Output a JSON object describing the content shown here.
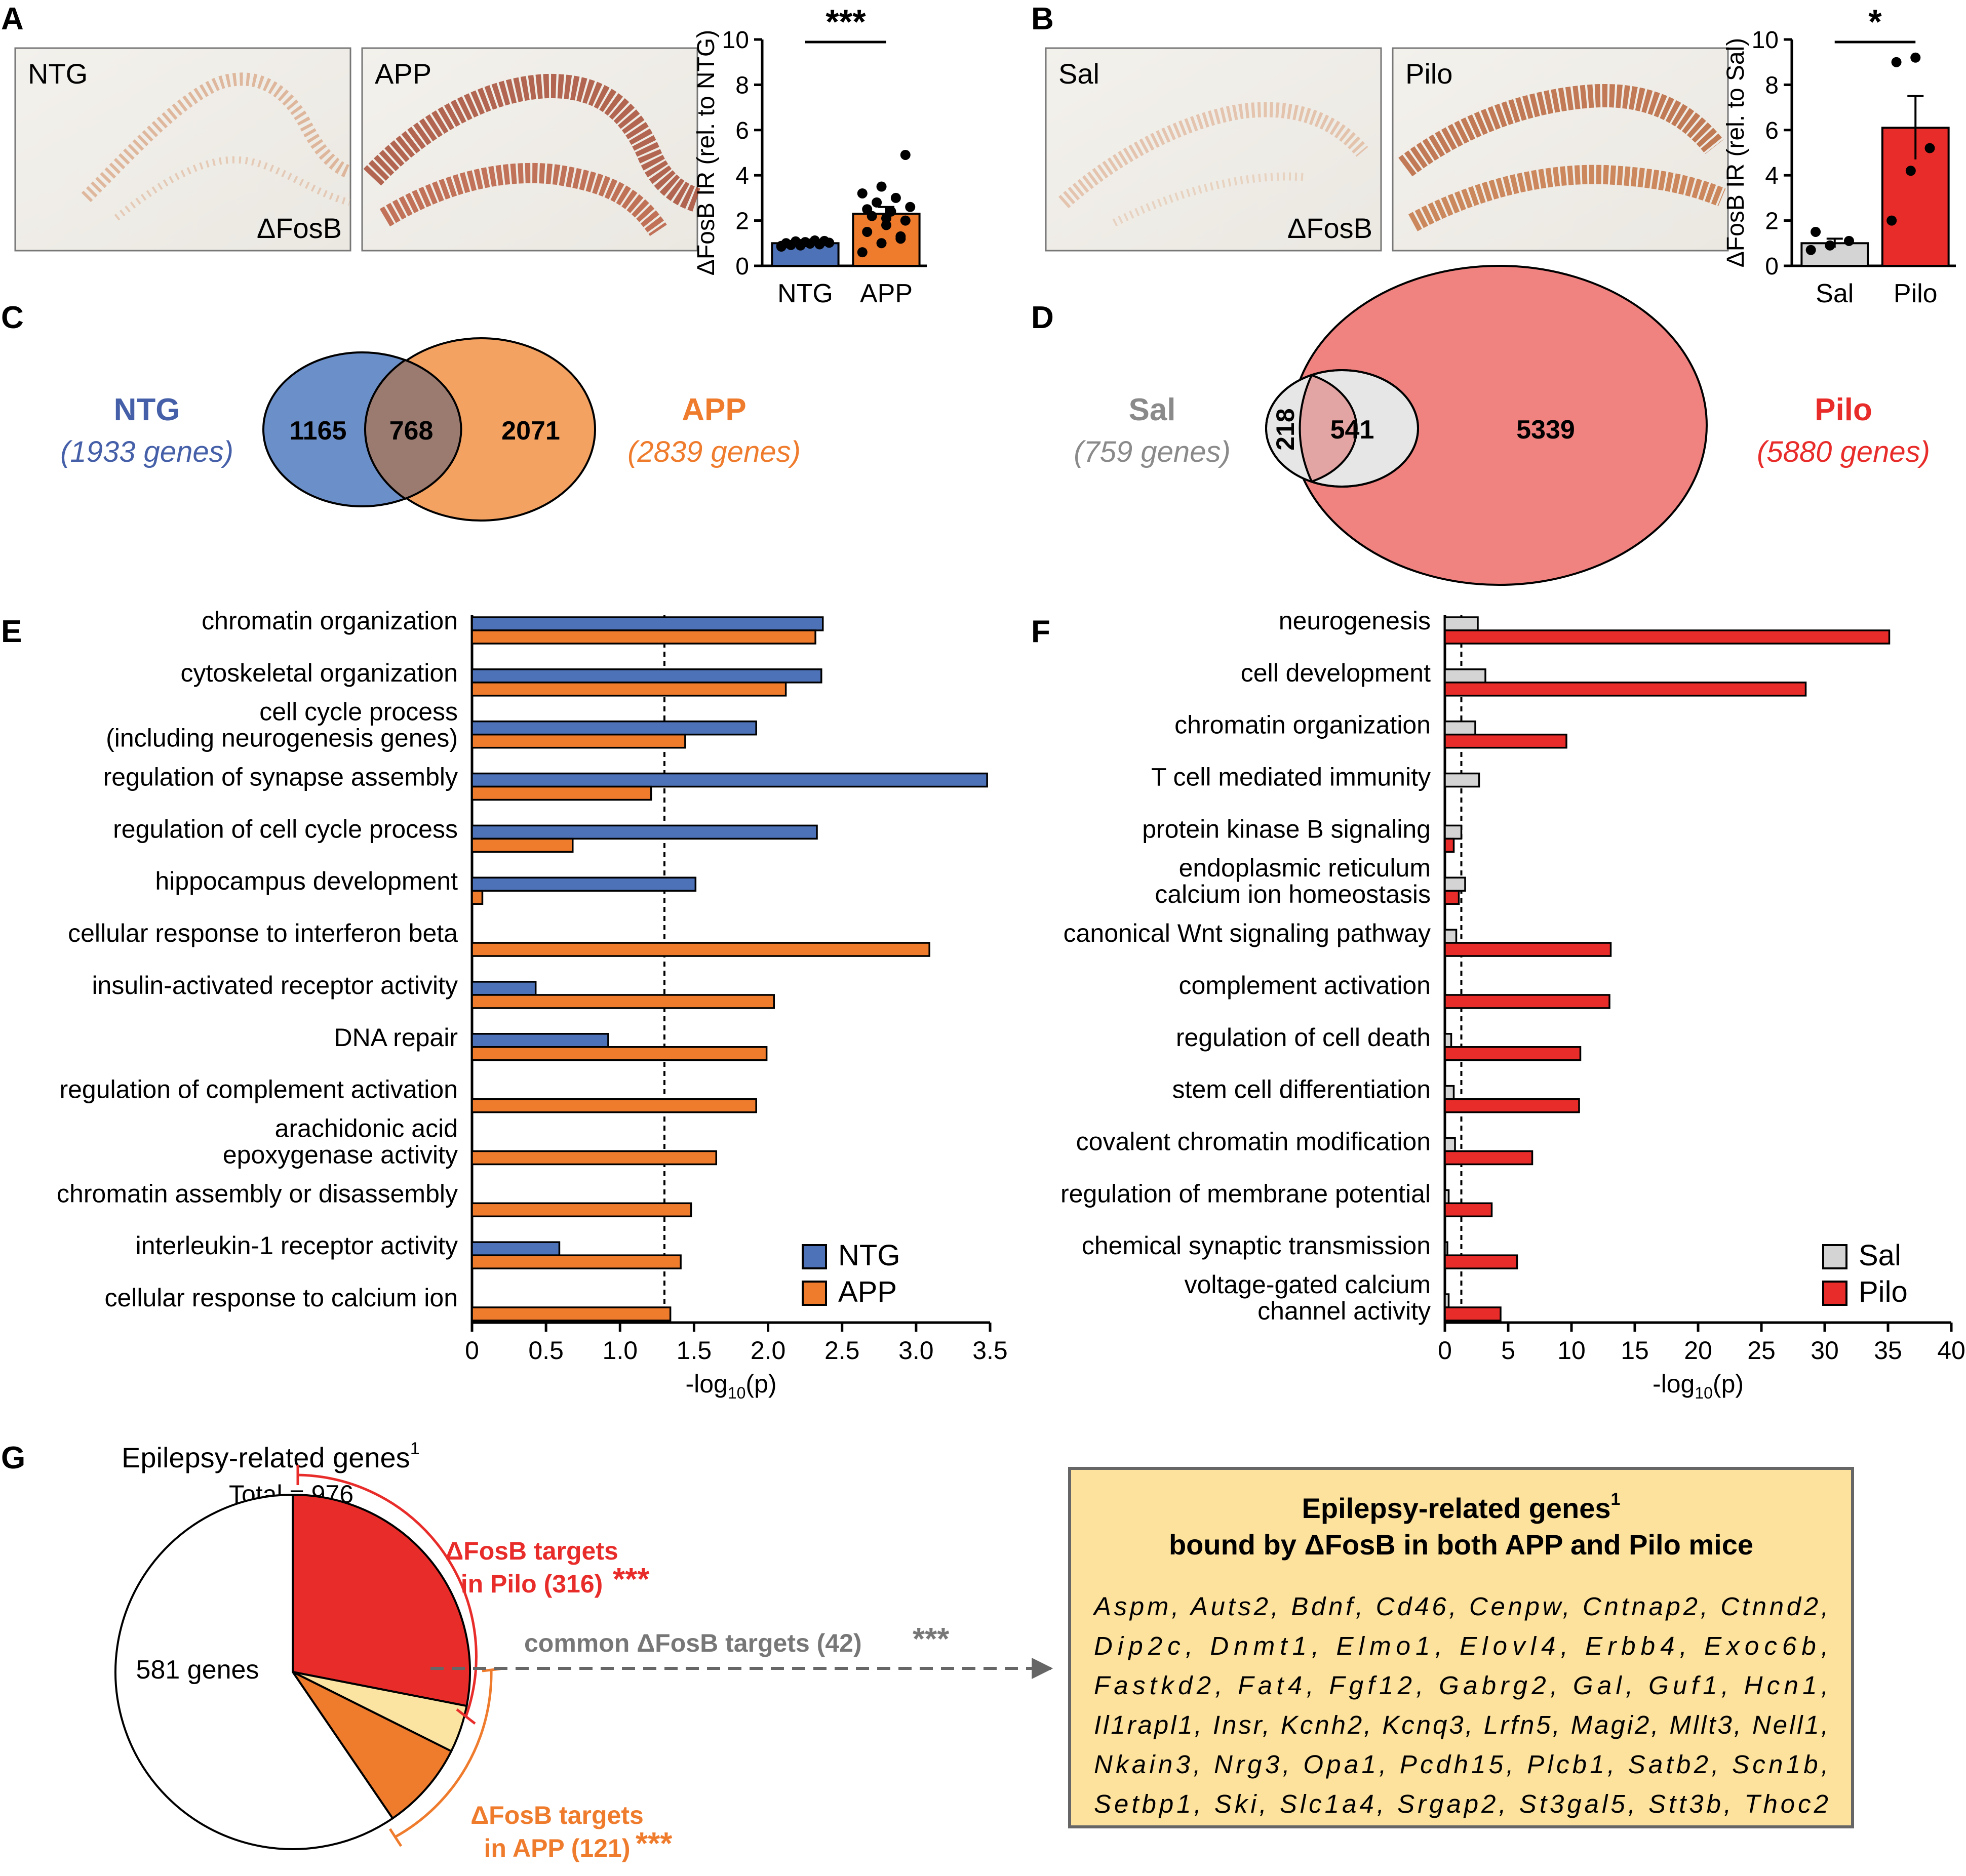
{
  "figure": {
    "panel_labels": [
      "A",
      "B",
      "C",
      "D",
      "E",
      "F",
      "G"
    ],
    "panel_a": {
      "micrographs": [
        {
          "label": "NTG",
          "stain": "ΔFosB"
        },
        {
          "label": "APP"
        }
      ]
    },
    "panel_b": {
      "micrographs": [
        {
          "label": "Sal",
          "stain": "ΔFosB"
        },
        {
          "label": "Pilo"
        }
      ]
    },
    "panel_c": {
      "left": {
        "name": "NTG",
        "genes": "(1933 genes)",
        "unique": "1165"
      },
      "overlap": "768",
      "right": {
        "name": "APP",
        "genes": "(2839 genes)",
        "unique": "2071"
      }
    },
    "panel_d": {
      "left": {
        "name": "Sal",
        "genes": "(759 genes)",
        "unique": "218"
      },
      "overlap": "541",
      "right": {
        "name": "Pilo",
        "genes": "(5880 genes)",
        "unique": "5339"
      }
    },
    "panel_g": {
      "title": "Epilepsy-related genes",
      "title_sup": "1",
      "total": "Total = 976",
      "white_slice_label": "581 genes",
      "pilo_label_1": "ΔFosB targets",
      "pilo_label_2": "in Pilo (316)",
      "pilo_stars": "***",
      "common_label": "common ΔFosB targets (42)",
      "common_stars": "***",
      "app_label_1": "ΔFosB targets",
      "app_label_2": "in APP (121)",
      "app_stars": "***",
      "box_title_1": "Epilepsy-related genes",
      "box_title_sup": "1",
      "box_title_2": "bound by ΔFosB in both APP and Pilo mice",
      "gene_lines": [
        "Aspm,  Auts2,  Bdnf,  Cd46,  Cenpw,  Cntnap2,  Ctnnd2,",
        "Dip2c,    Dnmt1,    Elmo1,    Elovl4,    Erbb4,    Exoc6b,",
        "Fastkd2,   Fat4,   Fgf12,   Gabrg2,   Gal,   Guf1,   Hcn1,",
        "Il1rapl1,  Insr,  Kcnh2,  Kcnq3,  Lrfn5,  Magi2,  Mllt3,  Nell1,",
        "Nkain3,  Nrg3,  Opa1,  Pcdh15,  Plcb1,  Satb2,  Scn1b,",
        "Setbp1,  Ski,  Slc1a4,  Srgap2,  St3gal5,  Stt3b,  Thoc2"
      ]
    }
  },
  "colors": {
    "ntg": "#4d72b8",
    "app": "#ef7b2d",
    "pilo": "#e82c2a",
    "sal": "#d4d4d4",
    "venn_ntg": "#6b8fc8",
    "venn_app": "#f3a262",
    "venn_overlap": "#9b7a70",
    "venn_pilo": "#f08380",
    "venn_sal": "#e6e6e6",
    "venn_sal_overlap": "#e3a5a3",
    "pie_common": "#fbe3a1",
    "gene_box": "#fde29e"
  },
  "chart_data": [
    {
      "id": "A_bar",
      "type": "bar",
      "title": "",
      "ylabel": "ΔFosB IR (rel. to NTG)",
      "categories": [
        "NTG",
        "APP"
      ],
      "values": [
        1.0,
        2.3
      ],
      "errors": [
        0.06,
        0.3
      ],
      "ylim": [
        0,
        10
      ],
      "yticks": [
        0,
        2,
        4,
        6,
        8,
        10
      ],
      "significance": "***",
      "points": [
        [
          0.85,
          0.9,
          0.95,
          1.0,
          1.05,
          1.1,
          0.92,
          0.98,
          1.02,
          1.08,
          1.12,
          0.88,
          0.96
        ],
        [
          0.6,
          1.0,
          1.3,
          1.5,
          1.8,
          2.0,
          2.2,
          2.4,
          2.6,
          2.8,
          3.0,
          3.2,
          3.5,
          1.2,
          2.5,
          2.1,
          4.9
        ]
      ]
    },
    {
      "id": "B_bar",
      "type": "bar",
      "title": "",
      "ylabel": "ΔFosB IR (rel. to Sal)",
      "categories": [
        "Sal",
        "Pilo"
      ],
      "values": [
        1.0,
        6.1
      ],
      "errors": [
        0.2,
        1.4
      ],
      "ylim": [
        0,
        10
      ],
      "yticks": [
        0,
        2,
        4,
        6,
        8,
        10
      ],
      "significance": "*",
      "points": [
        [
          0.7,
          0.9,
          1.1,
          1.5
        ],
        [
          2.0,
          4.2,
          5.2,
          9.0,
          9.2
        ]
      ]
    },
    {
      "id": "E_bar",
      "type": "bar",
      "orientation": "horizontal",
      "xlabel": "-log",
      "xlabel_sub": "10",
      "xlabel_tail": "(p)",
      "xlim": [
        0,
        3.5
      ],
      "xticks": [
        "0",
        "0.5",
        "1.0",
        "1.5",
        "2.0",
        "2.5",
        "3.0",
        "3.5"
      ],
      "threshold": 1.3,
      "legend": [
        "NTG",
        "APP"
      ],
      "legend_position": "bottom-right",
      "categories": [
        [
          "chromatin organization"
        ],
        [
          "cytoskeletal organization"
        ],
        [
          "cell cycle process",
          "(including neurogenesis genes)"
        ],
        [
          "regulation of synapse assembly"
        ],
        [
          "regulation of cell cycle process"
        ],
        [
          "hippocampus development"
        ],
        [
          "cellular response to interferon beta"
        ],
        [
          "insulin-activated receptor activity"
        ],
        [
          "DNA repair"
        ],
        [
          "regulation of complement activation"
        ],
        [
          "arachidonic acid",
          "epoxygenase activity"
        ],
        [
          "chromatin assembly or disassembly"
        ],
        [
          "interleukin-1 receptor activity"
        ],
        [
          "cellular response to calcium ion"
        ]
      ],
      "series": [
        {
          "name": "NTG",
          "values": [
            2.37,
            2.36,
            1.92,
            3.48,
            2.33,
            1.51,
            0,
            0.43,
            0.92,
            0,
            0,
            0,
            0.59,
            0
          ]
        },
        {
          "name": "APP",
          "values": [
            2.32,
            2.12,
            1.44,
            1.21,
            0.68,
            0.07,
            3.09,
            2.04,
            1.99,
            1.92,
            1.65,
            1.48,
            1.41,
            1.34
          ]
        }
      ]
    },
    {
      "id": "F_bar",
      "type": "bar",
      "orientation": "horizontal",
      "xlabel": "-log",
      "xlabel_sub": "10",
      "xlabel_tail": "(p)",
      "xlim": [
        0,
        40
      ],
      "xticks": [
        "0",
        "5",
        "10",
        "15",
        "20",
        "25",
        "30",
        "35",
        "40"
      ],
      "threshold": 1.3,
      "legend": [
        "Sal",
        "Pilo"
      ],
      "legend_position": "bottom-right",
      "categories": [
        [
          "neurogenesis"
        ],
        [
          "cell development"
        ],
        [
          "chromatin organization"
        ],
        [
          "T cell mediated immunity"
        ],
        [
          "protein kinase B signaling"
        ],
        [
          "endoplasmic reticulum",
          "calcium ion homeostasis"
        ],
        [
          "canonical Wnt signaling pathway"
        ],
        [
          "complement activation"
        ],
        [
          "regulation of cell death"
        ],
        [
          "stem cell differentiation"
        ],
        [
          "covalent chromatin modification"
        ],
        [
          "regulation of membrane potential"
        ],
        [
          "chemical synaptic transmission"
        ],
        [
          "voltage-gated calcium",
          "channel activity"
        ]
      ],
      "series": [
        {
          "name": "Sal",
          "values": [
            2.6,
            3.2,
            2.4,
            2.7,
            1.3,
            1.6,
            0.9,
            0,
            0.5,
            0.7,
            0.8,
            0.3,
            0.2,
            0.3
          ]
        },
        {
          "name": "Pilo",
          "values": [
            35.1,
            28.5,
            9.6,
            0,
            0.7,
            1.1,
            13.1,
            13.0,
            10.7,
            10.6,
            6.9,
            3.7,
            5.7,
            4.4
          ]
        }
      ]
    },
    {
      "id": "G_pie",
      "type": "pie",
      "title": "Epilepsy-related genes",
      "total": 976,
      "slices": [
        {
          "label": "ΔFosB targets in Pilo",
          "value": 274
        },
        {
          "label": "common ΔFosB targets",
          "value": 42
        },
        {
          "label": "ΔFosB targets in APP",
          "value": 79
        },
        {
          "label": "other genes",
          "value": 581
        }
      ]
    }
  ]
}
